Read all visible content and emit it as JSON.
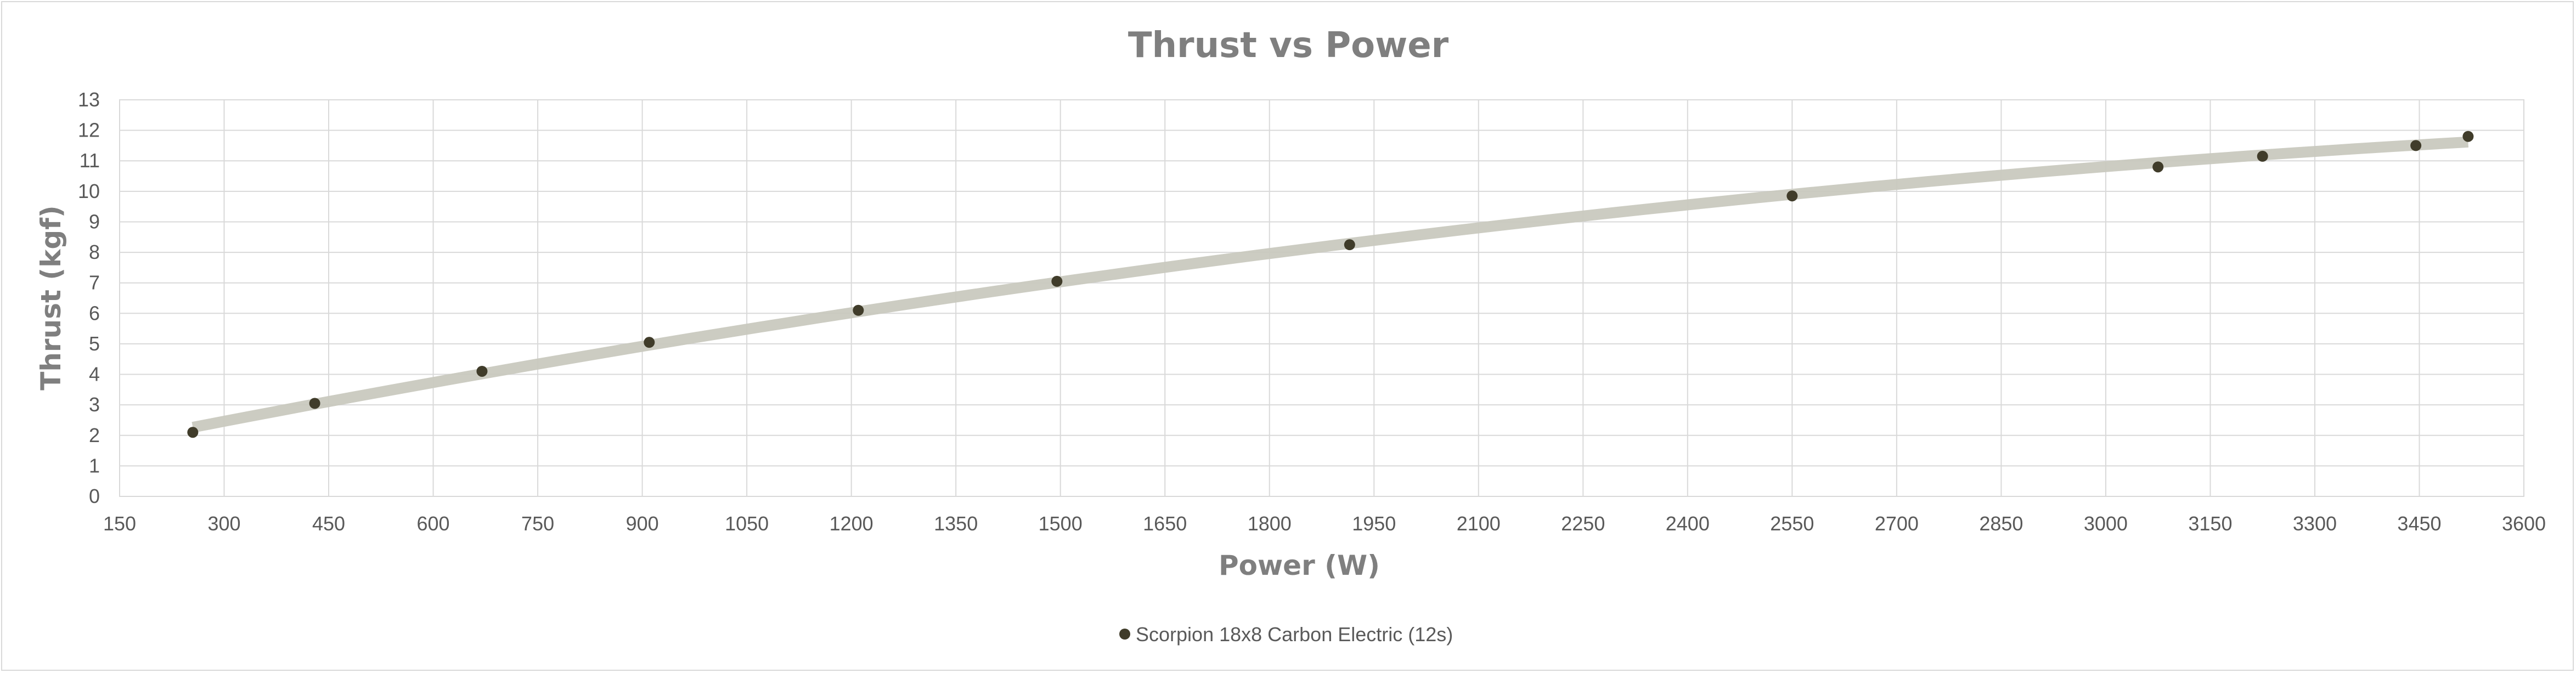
{
  "chart_data": {
    "type": "scatter",
    "title": "Thrust vs Power",
    "xlabel": "Power (W)",
    "ylabel": "Thrust (kgf)",
    "xlim": [
      150,
      3600
    ],
    "ylim": [
      0,
      13
    ],
    "xticks": [
      150,
      300,
      450,
      600,
      750,
      900,
      1050,
      1200,
      1350,
      1500,
      1650,
      1800,
      1950,
      2100,
      2250,
      2400,
      2550,
      2700,
      2850,
      3000,
      3150,
      3300,
      3450,
      3600
    ],
    "yticks": [
      0,
      1,
      2,
      3,
      4,
      5,
      6,
      7,
      8,
      9,
      10,
      11,
      12,
      13
    ],
    "grid": true,
    "legend_position": "bottom",
    "trendline": true,
    "series": [
      {
        "name": "Scorpion 18x8  Carbon Electric (12s)",
        "color": "#403c2a",
        "points": [
          {
            "x": 255,
            "y": 2.1
          },
          {
            "x": 430,
            "y": 3.05
          },
          {
            "x": 670,
            "y": 4.1
          },
          {
            "x": 910,
            "y": 5.05
          },
          {
            "x": 1210,
            "y": 6.1
          },
          {
            "x": 1495,
            "y": 7.05
          },
          {
            "x": 1915,
            "y": 8.25
          },
          {
            "x": 2550,
            "y": 9.85
          },
          {
            "x": 3075,
            "y": 10.8
          },
          {
            "x": 3225,
            "y": 11.15
          },
          {
            "x": 3445,
            "y": 11.5
          },
          {
            "x": 3520,
            "y": 11.8
          }
        ]
      }
    ],
    "trendline_color": "#c9c9bf"
  }
}
